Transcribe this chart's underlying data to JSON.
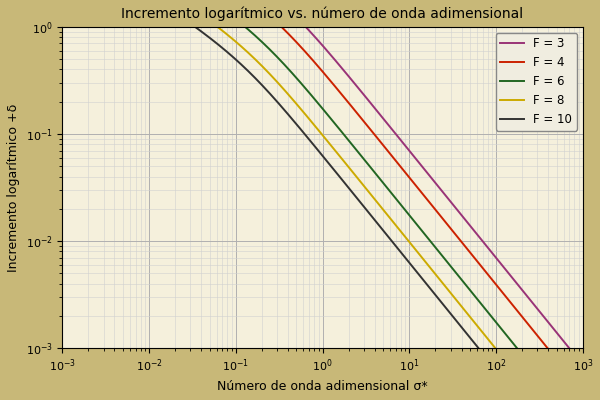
{
  "title": "Incremento logarítmico vs. número de onda adimensional",
  "xlabel": "Número de onda adimensional σ*",
  "ylabel": "Incremento logarítmico +δ",
  "xlim": [
    0.001,
    1000
  ],
  "ylim": [
    0.001,
    1.0
  ],
  "froude_numbers": [
    3,
    4,
    6,
    8,
    10
  ],
  "line_colors": [
    "#993377",
    "#cc2200",
    "#226622",
    "#ccaa00",
    "#333333"
  ],
  "line_labels": [
    "F = 3",
    "F = 4",
    "F = 6",
    "F = 8",
    "F = 10"
  ],
  "background_outer": "#c8b878",
  "background_plot": "#f5f0dc",
  "grid_major_color": "#b0b0b0",
  "grid_minor_color": "#d0d0d0",
  "title_fontsize": 10,
  "label_fontsize": 9,
  "tick_fontsize": 8,
  "legend_fontsize": 8.5,
  "linewidth": 1.4
}
